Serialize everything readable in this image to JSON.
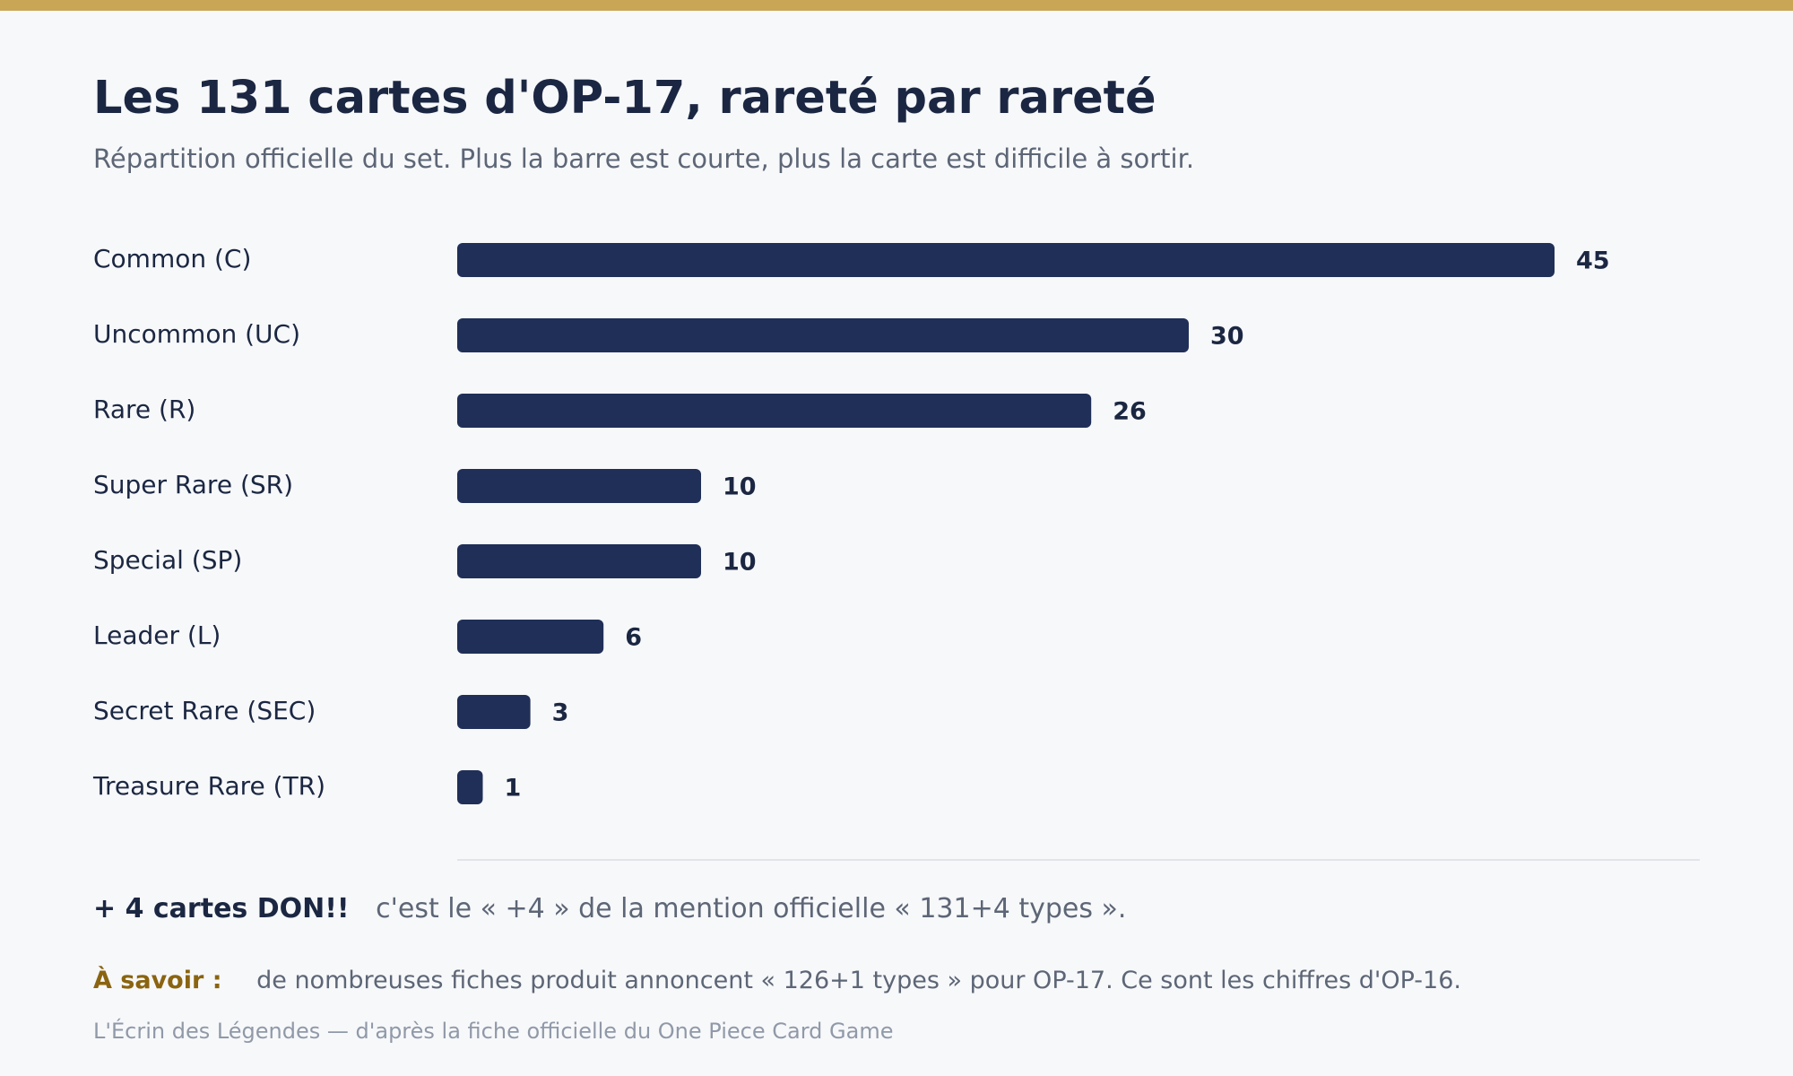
{
  "header": {
    "title": "Les 131 cartes d'OP-17, rareté par rareté",
    "subtitle": "Répartition officielle du set. Plus la barre est courte, plus la carte est difficile à sortir."
  },
  "chart_data": {
    "type": "bar",
    "orientation": "horizontal",
    "categories": [
      "Common (C)",
      "Uncommon (UC)",
      "Rare (R)",
      "Super Rare (SR)",
      "Special (SP)",
      "Leader (L)",
      "Secret Rare (SEC)",
      "Treasure Rare (TR)"
    ],
    "values": [
      45,
      30,
      26,
      10,
      10,
      6,
      3,
      1
    ],
    "title": "Les 131 cartes d'OP-17, rareté par rareté",
    "subtitle": "Répartition officielle du set. Plus la barre est courte, plus la carte est difficile à sortir.",
    "xlim": [
      0,
      45
    ],
    "grid": false,
    "legend": "none",
    "bar_color": "#1f2f57"
  },
  "footer": {
    "don_strong": "+ 4 cartes DON!!",
    "don_text": "c'est le « +4 » de la mention officielle « 131+4 types ».",
    "note_label": "À savoir :",
    "note_text": "de nombreuses fiches produit annoncent « 126+1 types » pour OP-17. Ce sont les chiffres d'OP-16.",
    "credit": "L'Écrin des Légendes — d'après la fiche officielle du One Piece Card Game"
  },
  "colors": {
    "accent_stripe": "#c9a656",
    "bar": "#1f2f57",
    "text_dark": "#1b2742",
    "text_muted": "#5d6676",
    "note_label": "#8a6410"
  }
}
